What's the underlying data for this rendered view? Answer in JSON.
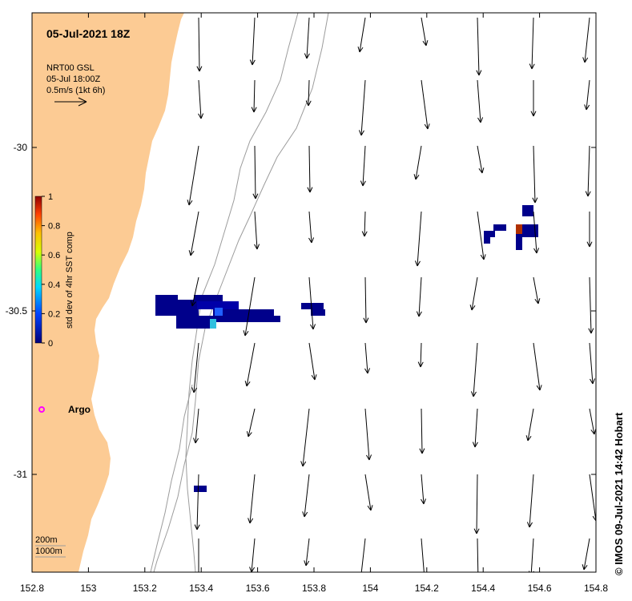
{
  "map": {
    "title": "05-Jul-2021 18Z",
    "legend_vector": {
      "line1": "NRT00 GSL",
      "line2": "05-Jul 18:00Z",
      "line3": "0.5m/s (1kt 6h)"
    },
    "colorbar": {
      "label": "std dev of 4hr SST comp",
      "ticks": [
        "1",
        "0.8",
        "0.6",
        "0.4",
        "0.2",
        "0"
      ]
    },
    "x_axis_ticks": [
      "152.8",
      "153",
      "153.2",
      "153.4",
      "153.6",
      "153.8",
      "154",
      "154.2",
      "154.4",
      "154.6",
      "154.8"
    ],
    "y_axis_ticks": [
      "-30",
      "-30.5",
      "-31"
    ],
    "argo_label": "Argo",
    "contour_labels": {
      "c200": "200m",
      "c1000": "1000m"
    },
    "credit": "© IMOS 09-Jul-2021 14:42 Hobart",
    "colors": {
      "land": "#fccb94",
      "ocean": "#ffffff",
      "argo": "#ff00ff",
      "contour": "#9c9c9c",
      "sst_low": "#00008b"
    }
  }
}
